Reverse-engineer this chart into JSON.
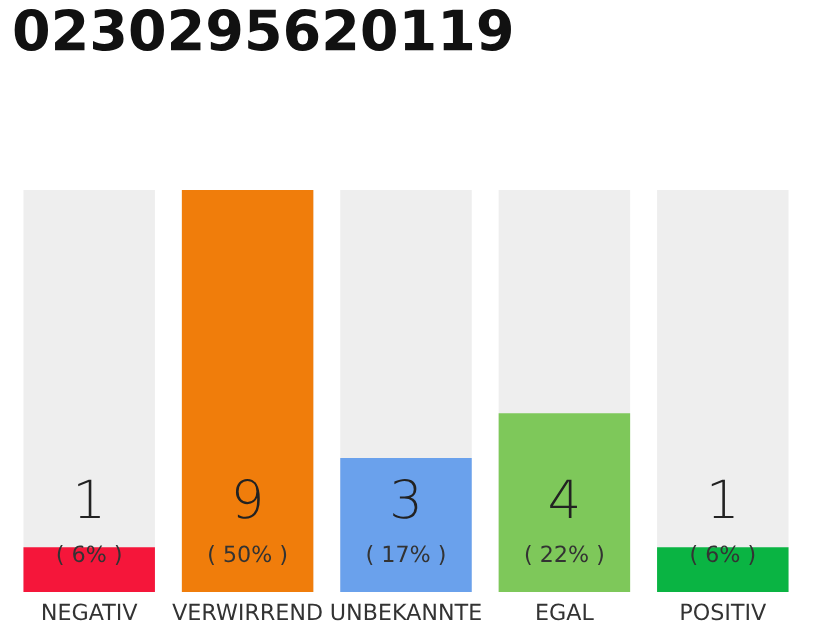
{
  "chart_data": {
    "type": "bar",
    "title": "0230295620119",
    "categories": [
      "NEGATIV",
      "VERWIRREND",
      "UNBEKANNTE",
      "EGAL",
      "POSITIV"
    ],
    "values": [
      1,
      9,
      3,
      4,
      1
    ],
    "colors": [
      "#f5163a",
      "#f07d0b",
      "#6aa1ec",
      "#7ec85a",
      "#0ab443"
    ],
    "data_labels": true,
    "tick_labels": "x",
    "grid": false,
    "annotations": [
      "( 6% )",
      "( 50% )",
      "( 17% )",
      "( 22% )",
      "( 6% )"
    ]
  }
}
